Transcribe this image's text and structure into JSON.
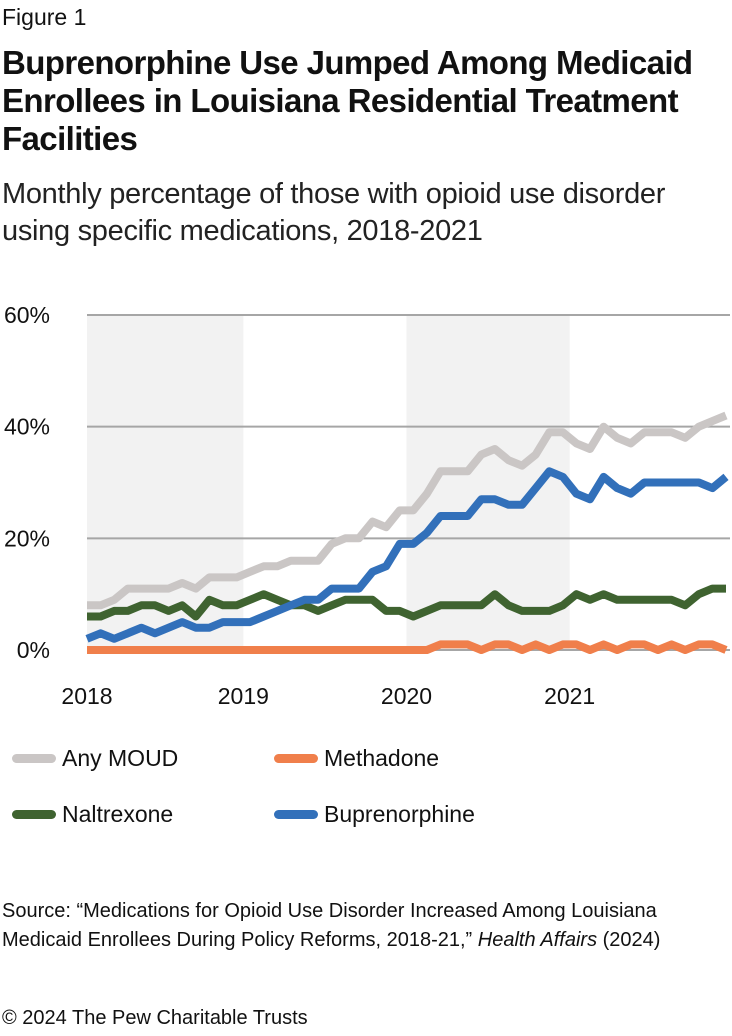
{
  "figure_label": "Figure 1",
  "title": "Buprenorphine Use Jumped Among Medicaid Enrollees in Louisiana Residential Treatment Facilities",
  "subtitle": "Monthly percentage of those with opioid use disorder using specific medications, 2018-2021",
  "source": {
    "prefix": "Source: “Medications for Opioid Use Disorder Increased Among Louisiana Medicaid Enrollees During Policy Reforms, 2018-21,” ",
    "journal": "Health Affairs",
    "suffix": " (2024)"
  },
  "copyright": "© 2024 The Pew Charitable Trusts",
  "chart_data": {
    "type": "line",
    "title": "Buprenorphine Use Jumped Among Medicaid Enrollees in Louisiana Residential Treatment Facilities",
    "subtitle": "Monthly percentage of those with opioid use disorder using specific medications, 2018-2021",
    "xlabel": "",
    "ylabel": "",
    "x_unit": "month",
    "x_start": "2018-01",
    "x_end": "2021-12",
    "x_tick_labels": [
      "2018",
      "2019",
      "2020",
      "2021"
    ],
    "y_tick_labels": [
      "0%",
      "20%",
      "40%",
      "60%"
    ],
    "y_ticks": [
      0,
      20,
      40,
      60
    ],
    "ylim": [
      0,
      60
    ],
    "grid": "horizontal",
    "shaded_years": [
      "2018",
      "2020"
    ],
    "legend_position": "bottom",
    "series": [
      {
        "name": "Any MOUD",
        "color": "#CAC6C5",
        "values": [
          8,
          8,
          9,
          11,
          11,
          11,
          11,
          12,
          11,
          13,
          13,
          13,
          14,
          15,
          15,
          16,
          16,
          16,
          19,
          20,
          20,
          23,
          22,
          25,
          25,
          28,
          32,
          32,
          32,
          35,
          36,
          34,
          33,
          35,
          39,
          39,
          37,
          36,
          40,
          38,
          37,
          39,
          39,
          39,
          38,
          40,
          41,
          42
        ]
      },
      {
        "name": "Methadone",
        "color": "#F07F4B",
        "values": [
          0,
          0,
          0,
          0,
          0,
          0,
          0,
          0,
          0,
          0,
          0,
          0,
          0,
          0,
          0,
          0,
          0,
          0,
          0,
          0,
          0,
          0,
          0,
          0,
          0,
          0,
          1,
          1,
          1,
          0,
          1,
          1,
          0,
          1,
          0,
          1,
          1,
          0,
          1,
          0,
          1,
          1,
          0,
          1,
          0,
          1,
          1,
          0
        ]
      },
      {
        "name": "Naltrexone",
        "color": "#3F6330",
        "values": [
          6,
          6,
          7,
          7,
          8,
          8,
          7,
          8,
          6,
          9,
          8,
          8,
          9,
          10,
          9,
          8,
          8,
          7,
          8,
          9,
          9,
          9,
          7,
          7,
          6,
          7,
          8,
          8,
          8,
          8,
          10,
          8,
          7,
          7,
          7,
          8,
          10,
          9,
          10,
          9,
          9,
          9,
          9,
          9,
          8,
          10,
          11,
          11
        ]
      },
      {
        "name": "Buprenorphine",
        "color": "#3270BA",
        "values": [
          2,
          3,
          2,
          3,
          4,
          3,
          4,
          5,
          4,
          4,
          5,
          5,
          5,
          6,
          7,
          8,
          9,
          9,
          11,
          11,
          11,
          14,
          15,
          19,
          19,
          21,
          24,
          24,
          24,
          27,
          27,
          26,
          26,
          29,
          32,
          31,
          28,
          27,
          31,
          29,
          28,
          30,
          30,
          30,
          30,
          30,
          29,
          31
        ]
      }
    ]
  },
  "legend": [
    {
      "label": "Any MOUD",
      "color": "#CAC6C5"
    },
    {
      "label": "Methadone",
      "color": "#F07F4B"
    },
    {
      "label": "Naltrexone",
      "color": "#3F6330"
    },
    {
      "label": "Buprenorphine",
      "color": "#3270BA"
    }
  ],
  "style": {
    "shade_color": "#F2F2F2",
    "grid_color": "#A6A6A6"
  }
}
